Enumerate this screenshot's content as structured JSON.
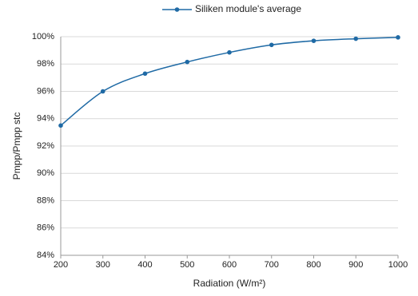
{
  "chart_data": {
    "type": "line",
    "x_label": "Radiation (W/m²)",
    "y_label": "Pmpp/Pmpp stc",
    "x": [
      200,
      300,
      400,
      500,
      600,
      700,
      800,
      900,
      1000
    ],
    "series": [
      {
        "name": "Siliken module's average",
        "color": "#1f6aa5",
        "values": [
          93.5,
          96.0,
          97.3,
          98.15,
          98.85,
          99.4,
          99.7,
          99.85,
          99.95
        ]
      }
    ],
    "xlim": [
      200,
      1000
    ],
    "xticks": [
      200,
      300,
      400,
      500,
      600,
      700,
      800,
      900,
      1000
    ],
    "ylim": [
      84,
      100
    ],
    "yticks": [
      {
        "value": 84,
        "label": "84%"
      },
      {
        "value": 86,
        "label": "86%"
      },
      {
        "value": 88,
        "label": "88%"
      },
      {
        "value": 90,
        "label": "90%"
      },
      {
        "value": 92,
        "label": "92%"
      },
      {
        "value": 94,
        "label": "94%"
      },
      {
        "value": 96,
        "label": "96%"
      },
      {
        "value": 98,
        "label": "98%"
      },
      {
        "value": 100,
        "label": "100%"
      }
    ],
    "grid": true,
    "legend": "top"
  }
}
